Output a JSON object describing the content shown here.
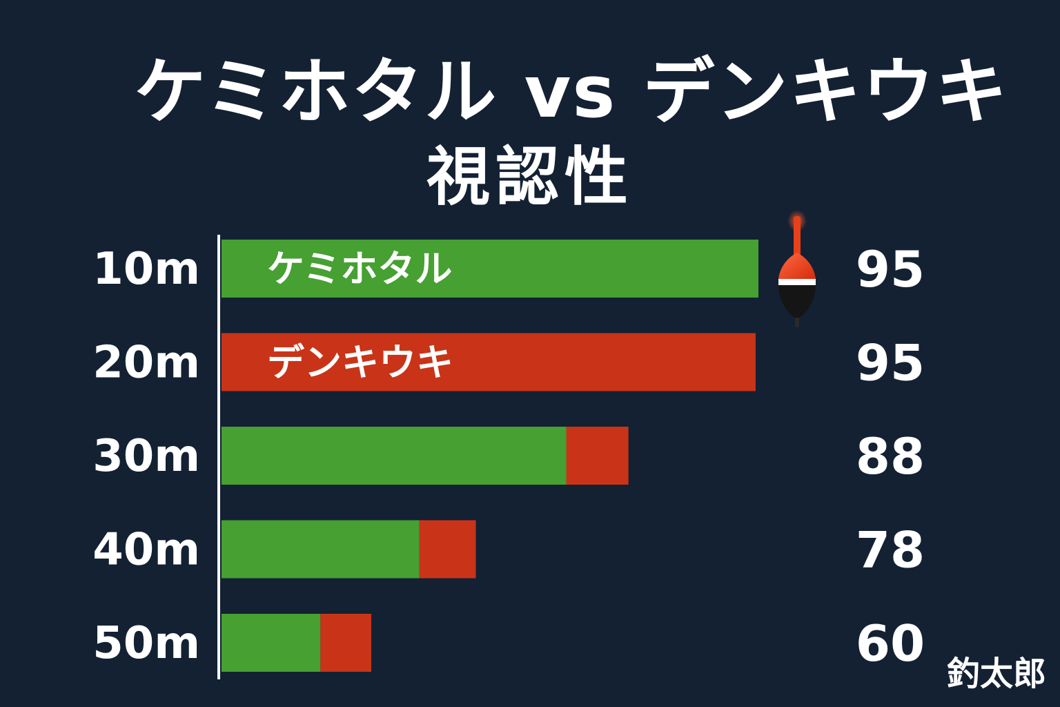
{
  "title_line1": "ケミホタル vs デンキウキ",
  "title_line2": "視認性",
  "signature": "釣太郎",
  "colors": {
    "background": "#132133",
    "kemihotaru": "#46a032",
    "denkiuki": "#c93418",
    "text": "#ffffff"
  },
  "chart_data": {
    "type": "bar",
    "orientation": "horizontal",
    "categories": [
      "10m",
      "20m",
      "30m",
      "40m",
      "50m"
    ],
    "values": [
      95,
      95,
      88,
      78,
      60
    ],
    "value_labels": [
      "95",
      "95",
      "88",
      "78",
      "60"
    ],
    "bar_labels": [
      "ケミホタル",
      "デンキウキ",
      "",
      "",
      ""
    ],
    "series": [
      {
        "values": [
          95,
          0,
          61,
          35,
          17.5
        ],
        "color": "#46a032"
      },
      {
        "values": [
          0,
          94.5,
          11,
          10,
          9
        ],
        "color": "#c93418"
      }
    ],
    "xlim": [
      0,
      95
    ],
    "grid": false,
    "legend": "none",
    "icon": "denkiuki-float-icon"
  }
}
